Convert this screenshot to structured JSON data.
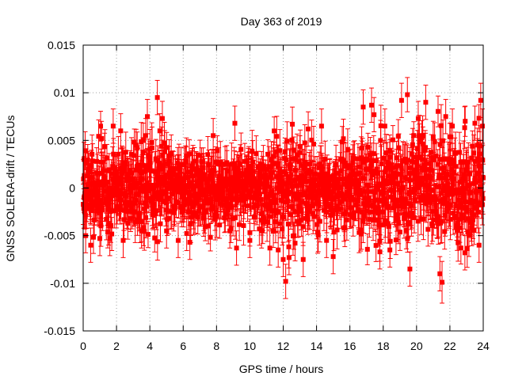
{
  "chart_data": {
    "type": "scatter",
    "title": "Day 363 of 2019",
    "xlabel": "GPS time / hours",
    "ylabel": "GNSS SOLERA-drift / TECUs",
    "xlim": [
      0,
      24
    ],
    "ylim": [
      -0.015,
      0.015
    ],
    "x_ticks": [
      "0",
      "2",
      "4",
      "6",
      "8",
      "10",
      "12",
      "14",
      "16",
      "18",
      "20",
      "22",
      "24"
    ],
    "y_ticks": [
      "-0.015",
      "-0.01",
      "-0.005",
      "0",
      "0.005",
      "0.01",
      "0.015"
    ],
    "grid": true,
    "legend": "none",
    "series_color": "#ff0000",
    "marker": "square",
    "error_bars": true,
    "typical_error": 0.0018,
    "highlighted_points": [
      {
        "x": 0.05,
        "y": 0.003
      },
      {
        "x": 0.1,
        "y": -0.0025
      },
      {
        "x": 0.15,
        "y": -0.005
      },
      {
        "x": 0.45,
        "y": -0.006
      },
      {
        "x": 1.0,
        "y": -0.0053
      },
      {
        "x": 1.1,
        "y": 0.0052
      },
      {
        "x": 1.6,
        "y": -0.0053
      },
      {
        "x": 1.8,
        "y": 0.0065
      },
      {
        "x": 2.25,
        "y": 0.006
      },
      {
        "x": 2.4,
        "y": -0.0055
      },
      {
        "x": 3.5,
        "y": -0.0045
      },
      {
        "x": 3.75,
        "y": 0.0055
      },
      {
        "x": 3.85,
        "y": 0.0075
      },
      {
        "x": 4.45,
        "y": 0.0095
      },
      {
        "x": 4.6,
        "y": 0.006
      },
      {
        "x": 4.75,
        "y": 0.0073
      },
      {
        "x": 5.0,
        "y": -0.0045
      },
      {
        "x": 5.7,
        "y": -0.0055
      },
      {
        "x": 6.4,
        "y": -0.0057
      },
      {
        "x": 7.8,
        "y": 0.0055
      },
      {
        "x": 8.8,
        "y": -0.0045
      },
      {
        "x": 9.1,
        "y": 0.0068
      },
      {
        "x": 9.2,
        "y": -0.0063
      },
      {
        "x": 10.0,
        "y": -0.0055
      },
      {
        "x": 10.7,
        "y": -0.0045
      },
      {
        "x": 11.2,
        "y": -0.0063
      },
      {
        "x": 11.7,
        "y": -0.0065
      },
      {
        "x": 12.0,
        "y": -0.0075
      },
      {
        "x": 12.15,
        "y": -0.0098
      },
      {
        "x": 12.35,
        "y": -0.0073
      },
      {
        "x": 12.55,
        "y": 0.0067
      },
      {
        "x": 13.2,
        "y": -0.0075
      },
      {
        "x": 13.5,
        "y": 0.0062
      },
      {
        "x": 14.3,
        "y": 0.0065
      },
      {
        "x": 14.6,
        "y": -0.0055
      },
      {
        "x": 15.0,
        "y": -0.0072
      },
      {
        "x": 16.8,
        "y": 0.0085
      },
      {
        "x": 17.3,
        "y": 0.0087
      },
      {
        "x": 17.45,
        "y": 0.0077
      },
      {
        "x": 17.8,
        "y": -0.0067
      },
      {
        "x": 18.1,
        "y": 0.0065
      },
      {
        "x": 18.4,
        "y": -0.0065
      },
      {
        "x": 19.1,
        "y": 0.0092
      },
      {
        "x": 19.45,
        "y": 0.0098
      },
      {
        "x": 19.6,
        "y": -0.0085
      },
      {
        "x": 20.1,
        "y": 0.0073
      },
      {
        "x": 20.55,
        "y": 0.009
      },
      {
        "x": 21.4,
        "y": -0.009
      },
      {
        "x": 21.75,
        "y": 0.0075
      },
      {
        "x": 22.15,
        "y": 0.0065
      },
      {
        "x": 22.9,
        "y": -0.0068
      },
      {
        "x": 23.5,
        "y": 0.0068
      },
      {
        "x": 23.75,
        "y": -0.006
      },
      {
        "x": 23.85,
        "y": 0.0092
      },
      {
        "x": 23.95,
        "y": 0.0065
      }
    ]
  }
}
